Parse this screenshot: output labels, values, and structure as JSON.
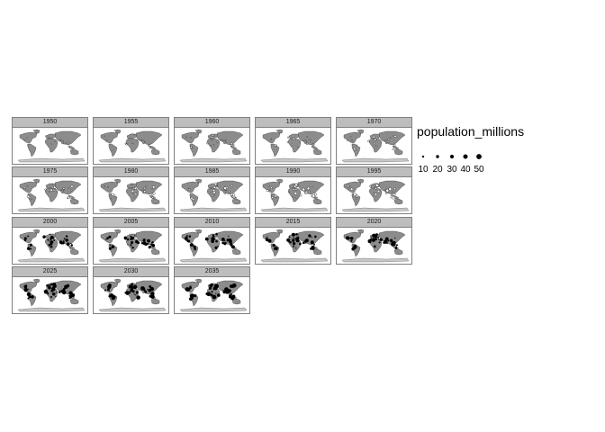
{
  "figure": {
    "type": "faceted-map",
    "facet_labels": [
      "1950",
      "1955",
      "1960",
      "1965",
      "1970",
      "1975",
      "1980",
      "1985",
      "1990",
      "1995",
      "2000",
      "2005",
      "2010",
      "2015",
      "2020",
      "2025",
      "2030",
      "2035"
    ],
    "colors": {
      "land": "#8c8c8c",
      "strip": "#bdbdbd",
      "border": "#7f7f7f",
      "point": "#000000",
      "antarctica": "#c8c8c8"
    }
  },
  "legend": {
    "title": "population_millions",
    "labels": [
      "10",
      "20",
      "30",
      "40",
      "50"
    ]
  }
}
